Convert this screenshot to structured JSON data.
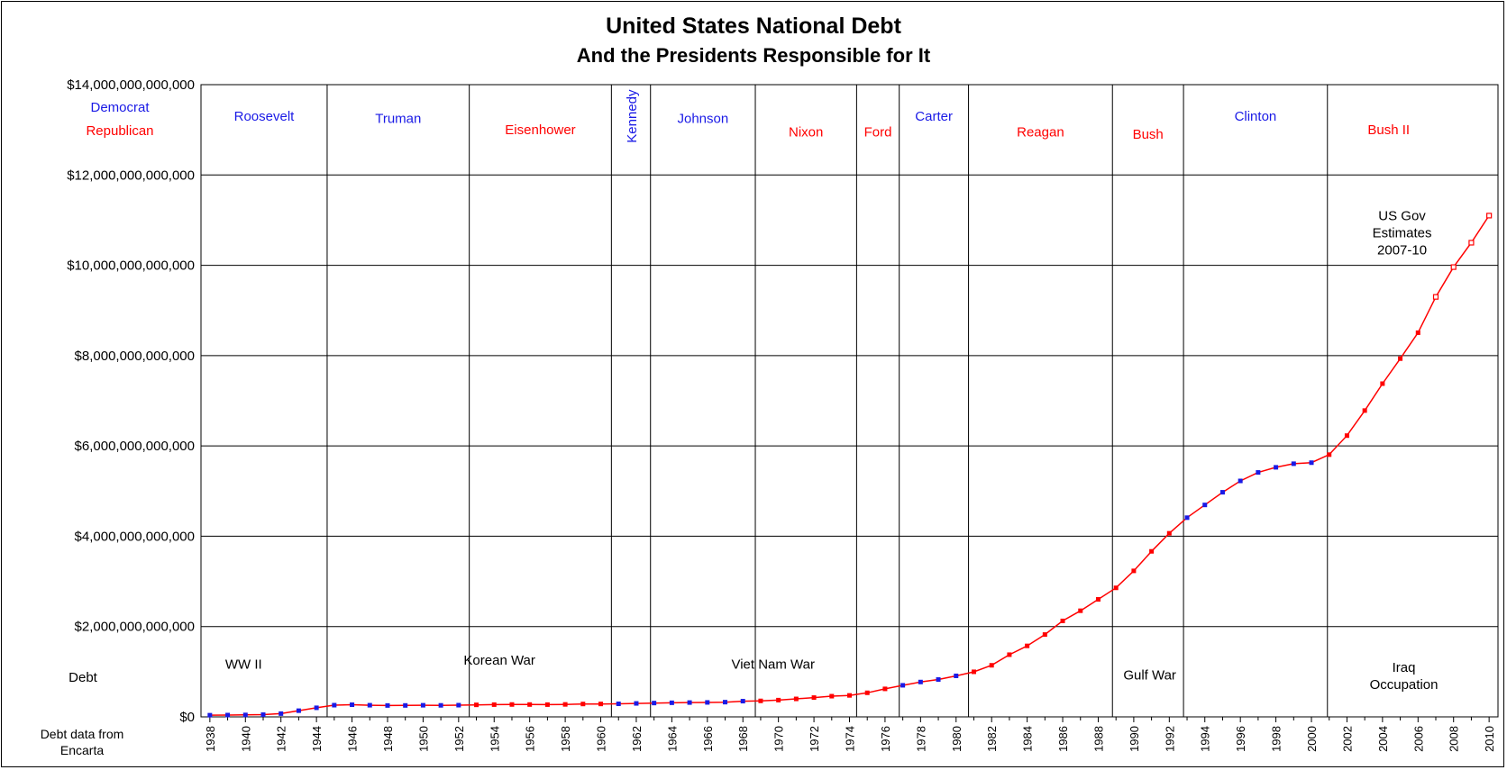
{
  "chart_data": {
    "type": "line",
    "title": "United States National Debt",
    "subtitle": "And the Presidents Responsible for It",
    "xlim": [
      1937.5,
      2010.5
    ],
    "ylim": [
      0,
      14000000000000
    ],
    "y_ticks": [
      "$0",
      "$2,000,000,000,000",
      "$4,000,000,000,000",
      "$6,000,000,000,000",
      "$8,000,000,000,000",
      "$10,000,000,000,000",
      "$12,000,000,000,000",
      "$14,000,000,000,000"
    ],
    "x_ticks": [
      "1938",
      "1940",
      "1942",
      "1944",
      "1946",
      "1948",
      "1950",
      "1952",
      "1954",
      "1956",
      "1958",
      "1960",
      "1962",
      "1964",
      "1966",
      "1968",
      "1970",
      "1972",
      "1974",
      "1976",
      "1978",
      "1980",
      "1982",
      "1984",
      "1986",
      "1988",
      "1990",
      "1992",
      "1994",
      "1996",
      "1998",
      "2000",
      "2002",
      "2004",
      "2006",
      "2008",
      "2010"
    ],
    "grid": true,
    "series": [
      {
        "values": [
          {
            "x": 1938,
            "y": 37000000000,
            "party": "D"
          },
          {
            "x": 1939,
            "y": 40000000000,
            "party": "D"
          },
          {
            "x": 1940,
            "y": 43000000000,
            "party": "D"
          },
          {
            "x": 1941,
            "y": 49000000000,
            "party": "D"
          },
          {
            "x": 1942,
            "y": 72000000000,
            "party": "D"
          },
          {
            "x": 1943,
            "y": 137000000000,
            "party": "D"
          },
          {
            "x": 1944,
            "y": 201000000000,
            "party": "D"
          },
          {
            "x": 1945,
            "y": 259000000000,
            "party": "D"
          },
          {
            "x": 1946,
            "y": 269000000000,
            "party": "D"
          },
          {
            "x": 1947,
            "y": 258000000000,
            "party": "D"
          },
          {
            "x": 1948,
            "y": 252000000000,
            "party": "D"
          },
          {
            "x": 1949,
            "y": 253000000000,
            "party": "D"
          },
          {
            "x": 1950,
            "y": 257000000000,
            "party": "D"
          },
          {
            "x": 1951,
            "y": 255000000000,
            "party": "D"
          },
          {
            "x": 1952,
            "y": 259000000000,
            "party": "D"
          },
          {
            "x": 1953,
            "y": 266000000000,
            "party": "R"
          },
          {
            "x": 1954,
            "y": 271000000000,
            "party": "R"
          },
          {
            "x": 1955,
            "y": 274000000000,
            "party": "R"
          },
          {
            "x": 1956,
            "y": 273000000000,
            "party": "R"
          },
          {
            "x": 1957,
            "y": 271000000000,
            "party": "R"
          },
          {
            "x": 1958,
            "y": 276000000000,
            "party": "R"
          },
          {
            "x": 1959,
            "y": 285000000000,
            "party": "R"
          },
          {
            "x": 1960,
            "y": 286000000000,
            "party": "R"
          },
          {
            "x": 1961,
            "y": 289000000000,
            "party": "D"
          },
          {
            "x": 1962,
            "y": 298000000000,
            "party": "D"
          },
          {
            "x": 1963,
            "y": 306000000000,
            "party": "D"
          },
          {
            "x": 1964,
            "y": 312000000000,
            "party": "D"
          },
          {
            "x": 1965,
            "y": 317000000000,
            "party": "D"
          },
          {
            "x": 1966,
            "y": 320000000000,
            "party": "D"
          },
          {
            "x": 1967,
            "y": 326000000000,
            "party": "D"
          },
          {
            "x": 1968,
            "y": 348000000000,
            "party": "D"
          },
          {
            "x": 1969,
            "y": 354000000000,
            "party": "R"
          },
          {
            "x": 1970,
            "y": 371000000000,
            "party": "R"
          },
          {
            "x": 1971,
            "y": 398000000000,
            "party": "R"
          },
          {
            "x": 1972,
            "y": 427000000000,
            "party": "R"
          },
          {
            "x": 1973,
            "y": 458000000000,
            "party": "R"
          },
          {
            "x": 1974,
            "y": 475000000000,
            "party": "R"
          },
          {
            "x": 1975,
            "y": 533000000000,
            "party": "R"
          },
          {
            "x": 1976,
            "y": 620000000000,
            "party": "R"
          },
          {
            "x": 1977,
            "y": 699000000000,
            "party": "D"
          },
          {
            "x": 1978,
            "y": 772000000000,
            "party": "D"
          },
          {
            "x": 1979,
            "y": 827000000000,
            "party": "D"
          },
          {
            "x": 1980,
            "y": 908000000000,
            "party": "D"
          },
          {
            "x": 1981,
            "y": 998000000000,
            "party": "R"
          },
          {
            "x": 1982,
            "y": 1142000000000,
            "party": "R"
          },
          {
            "x": 1983,
            "y": 1377000000000,
            "party": "R"
          },
          {
            "x": 1984,
            "y": 1572000000000,
            "party": "R"
          },
          {
            "x": 1985,
            "y": 1823000000000,
            "party": "R"
          },
          {
            "x": 1986,
            "y": 2125000000000,
            "party": "R"
          },
          {
            "x": 1987,
            "y": 2350000000000,
            "party": "R"
          },
          {
            "x": 1988,
            "y": 2602000000000,
            "party": "R"
          },
          {
            "x": 1989,
            "y": 2857000000000,
            "party": "R"
          },
          {
            "x": 1990,
            "y": 3233000000000,
            "party": "R"
          },
          {
            "x": 1991,
            "y": 3665000000000,
            "party": "R"
          },
          {
            "x": 1992,
            "y": 4065000000000,
            "party": "R"
          },
          {
            "x": 1993,
            "y": 4411000000000,
            "party": "D"
          },
          {
            "x": 1994,
            "y": 4693000000000,
            "party": "D"
          },
          {
            "x": 1995,
            "y": 4974000000000,
            "party": "D"
          },
          {
            "x": 1996,
            "y": 5225000000000,
            "party": "D"
          },
          {
            "x": 1997,
            "y": 5413000000000,
            "party": "D"
          },
          {
            "x": 1998,
            "y": 5526000000000,
            "party": "D"
          },
          {
            "x": 1999,
            "y": 5606000000000,
            "party": "D"
          },
          {
            "x": 2000,
            "y": 5629000000000,
            "party": "D"
          },
          {
            "x": 2001,
            "y": 5807000000000,
            "party": "R"
          },
          {
            "x": 2002,
            "y": 6228000000000,
            "party": "R"
          },
          {
            "x": 2003,
            "y": 6783000000000,
            "party": "R"
          },
          {
            "x": 2004,
            "y": 7379000000000,
            "party": "R"
          },
          {
            "x": 2005,
            "y": 7933000000000,
            "party": "R"
          },
          {
            "x": 2006,
            "y": 8507000000000,
            "party": "R"
          },
          {
            "x": 2007,
            "y": 9300000000000,
            "party": "R",
            "estimate": true
          },
          {
            "x": 2008,
            "y": 9960000000000,
            "party": "R",
            "estimate": true
          },
          {
            "x": 2009,
            "y": 10500000000000,
            "party": "R",
            "estimate": true
          },
          {
            "x": 2010,
            "y": 11100000000000,
            "party": "R",
            "estimate": true
          }
        ]
      }
    ],
    "colors": {
      "democrat": "#1a1ae6",
      "republican": "#ff0000",
      "line": "#ff0000",
      "grid": "#000000"
    },
    "legend": [
      {
        "label": "Democrat",
        "color": "#1a1ae6"
      },
      {
        "label": "Republican",
        "color": "#ff0000"
      }
    ],
    "presidents": [
      {
        "name": "Roosevelt",
        "party": "D",
        "start": 1937.5,
        "end": 1944.6,
        "label_y": 13200000000000
      },
      {
        "name": "Truman",
        "party": "D",
        "start": 1944.6,
        "end": 1952.6,
        "label_y": 13150000000000
      },
      {
        "name": "Eisenhower",
        "party": "R",
        "start": 1952.6,
        "end": 1960.6,
        "label_y": 12900000000000
      },
      {
        "name": "Kennedy",
        "party": "D",
        "start": 1960.6,
        "end": 1962.8,
        "vertical": true,
        "label_y": 13300000000000
      },
      {
        "name": "Johnson",
        "party": "D",
        "start": 1962.8,
        "end": 1968.7,
        "label_y": 13150000000000
      },
      {
        "name": "Nixon",
        "party": "R",
        "start": 1968.7,
        "end": 1974.4,
        "label_y": 12850000000000
      },
      {
        "name": "Ford",
        "party": "R",
        "start": 1974.4,
        "end": 1976.8,
        "label_y": 12850000000000
      },
      {
        "name": "Carter",
        "party": "D",
        "start": 1976.8,
        "end": 1980.7,
        "label_y": 13200000000000
      },
      {
        "name": "Reagan",
        "party": "R",
        "start": 1980.7,
        "end": 1988.8,
        "label_y": 12850000000000
      },
      {
        "name": "Bush",
        "party": "R",
        "start": 1988.8,
        "end": 1992.8,
        "label_y": 12800000000000
      },
      {
        "name": "Clinton",
        "party": "D",
        "start": 1992.8,
        "end": 2000.9,
        "label_y": 13200000000000
      },
      {
        "name": "Bush II",
        "party": "R",
        "start": 2000.9,
        "end": 2007.8,
        "label_y": 12900000000000
      }
    ],
    "annotations": [
      {
        "text": "WW II",
        "x": 1939.9,
        "y": 1070000000000
      },
      {
        "text": "Korean War",
        "x": 1954.3,
        "y": 1160000000000
      },
      {
        "text": "Viet Nam War",
        "x": 1969.7,
        "y": 1070000000000
      },
      {
        "text": "Gulf War",
        "x": 1990.9,
        "y": 830000000000
      },
      {
        "text": "Iraq Occupation",
        "x": 2005.2,
        "y": 1000000000000,
        "lines": [
          "Iraq",
          "Occupation"
        ]
      },
      {
        "text": "US Gov Estimates 2007-10",
        "x": 2005.1,
        "y": 11000000000000,
        "lines": [
          "US Gov",
          "Estimates",
          "2007-10"
        ]
      }
    ],
    "side_labels": {
      "debt": "Debt",
      "source": [
        "Debt data from",
        "Encarta"
      ]
    }
  }
}
